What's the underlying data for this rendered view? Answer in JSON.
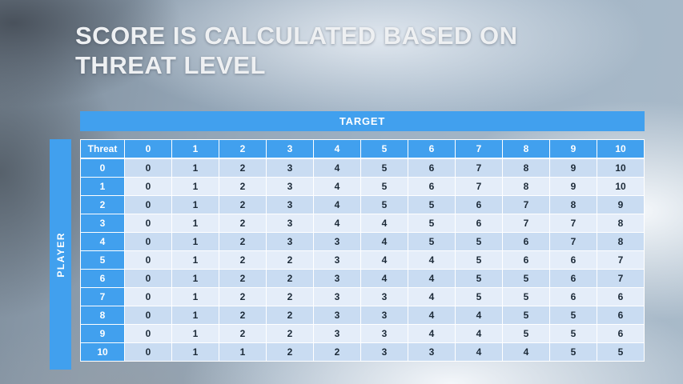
{
  "slide": {
    "title_line1": "SCORE IS CALCULATED BASED ON",
    "title_line2": "THREAT LEVEL"
  },
  "table": {
    "target_label": "TARGET",
    "player_label": "PLAYER",
    "corner_label": "Threat",
    "col_headers": [
      "0",
      "1",
      "2",
      "3",
      "4",
      "5",
      "6",
      "7",
      "8",
      "9",
      "10"
    ],
    "rows": [
      {
        "threat": "0",
        "values": [
          "0",
          "1",
          "2",
          "3",
          "4",
          "5",
          "6",
          "7",
          "8",
          "9",
          "10"
        ]
      },
      {
        "threat": "1",
        "values": [
          "0",
          "1",
          "2",
          "3",
          "4",
          "5",
          "6",
          "7",
          "8",
          "9",
          "10"
        ]
      },
      {
        "threat": "2",
        "values": [
          "0",
          "1",
          "2",
          "3",
          "4",
          "5",
          "5",
          "6",
          "7",
          "8",
          "9"
        ]
      },
      {
        "threat": "3",
        "values": [
          "0",
          "1",
          "2",
          "3",
          "4",
          "4",
          "5",
          "6",
          "7",
          "7",
          "8"
        ]
      },
      {
        "threat": "4",
        "values": [
          "0",
          "1",
          "2",
          "3",
          "3",
          "4",
          "5",
          "5",
          "6",
          "7",
          "8"
        ]
      },
      {
        "threat": "5",
        "values": [
          "0",
          "1",
          "2",
          "2",
          "3",
          "4",
          "4",
          "5",
          "6",
          "6",
          "7"
        ]
      },
      {
        "threat": "6",
        "values": [
          "0",
          "1",
          "2",
          "2",
          "3",
          "4",
          "4",
          "5",
          "5",
          "6",
          "7"
        ]
      },
      {
        "threat": "7",
        "values": [
          "0",
          "1",
          "2",
          "2",
          "3",
          "3",
          "4",
          "5",
          "5",
          "6",
          "6"
        ]
      },
      {
        "threat": "8",
        "values": [
          "0",
          "1",
          "2",
          "2",
          "3",
          "3",
          "4",
          "4",
          "5",
          "5",
          "6"
        ]
      },
      {
        "threat": "9",
        "values": [
          "0",
          "1",
          "2",
          "2",
          "3",
          "3",
          "4",
          "4",
          "5",
          "5",
          "6"
        ]
      },
      {
        "threat": "10",
        "values": [
          "0",
          "1",
          "1",
          "2",
          "2",
          "3",
          "3",
          "4",
          "4",
          "5",
          "5"
        ]
      }
    ]
  },
  "colors": {
    "accent_blue": "#41A0EE",
    "band_dark": "#C9DCF2",
    "band_light": "#E4EDF9",
    "data_text": "#1C2A38"
  },
  "chart_data": {
    "type": "table",
    "title": "Score is calculated based on threat level",
    "column_axis_label": "TARGET",
    "row_axis_label": "PLAYER",
    "row_header": "Threat",
    "columns": [
      0,
      1,
      2,
      3,
      4,
      5,
      6,
      7,
      8,
      9,
      10
    ],
    "rows": [
      {
        "threat": 0,
        "values": [
          0,
          1,
          2,
          3,
          4,
          5,
          6,
          7,
          8,
          9,
          10
        ]
      },
      {
        "threat": 1,
        "values": [
          0,
          1,
          2,
          3,
          4,
          5,
          6,
          7,
          8,
          9,
          10
        ]
      },
      {
        "threat": 2,
        "values": [
          0,
          1,
          2,
          3,
          4,
          5,
          5,
          6,
          7,
          8,
          9
        ]
      },
      {
        "threat": 3,
        "values": [
          0,
          1,
          2,
          3,
          4,
          4,
          5,
          6,
          7,
          7,
          8
        ]
      },
      {
        "threat": 4,
        "values": [
          0,
          1,
          2,
          3,
          3,
          4,
          5,
          5,
          6,
          7,
          8
        ]
      },
      {
        "threat": 5,
        "values": [
          0,
          1,
          2,
          2,
          3,
          4,
          4,
          5,
          6,
          6,
          7
        ]
      },
      {
        "threat": 6,
        "values": [
          0,
          1,
          2,
          2,
          3,
          4,
          4,
          5,
          5,
          6,
          7
        ]
      },
      {
        "threat": 7,
        "values": [
          0,
          1,
          2,
          2,
          3,
          3,
          4,
          5,
          5,
          6,
          6
        ]
      },
      {
        "threat": 8,
        "values": [
          0,
          1,
          2,
          2,
          3,
          3,
          4,
          4,
          5,
          5,
          6
        ]
      },
      {
        "threat": 9,
        "values": [
          0,
          1,
          2,
          2,
          3,
          3,
          4,
          4,
          5,
          5,
          6
        ]
      },
      {
        "threat": 10,
        "values": [
          0,
          1,
          1,
          2,
          2,
          3,
          3,
          4,
          4,
          5,
          5
        ]
      }
    ]
  }
}
